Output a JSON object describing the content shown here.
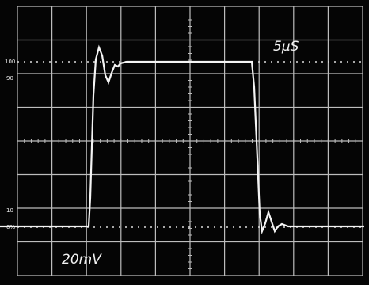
{
  "screen": {
    "time_scale": "5µS",
    "volt_scale": "20mV",
    "graticule_labels": [
      "100",
      "90",
      "10",
      "0%"
    ]
  }
}
